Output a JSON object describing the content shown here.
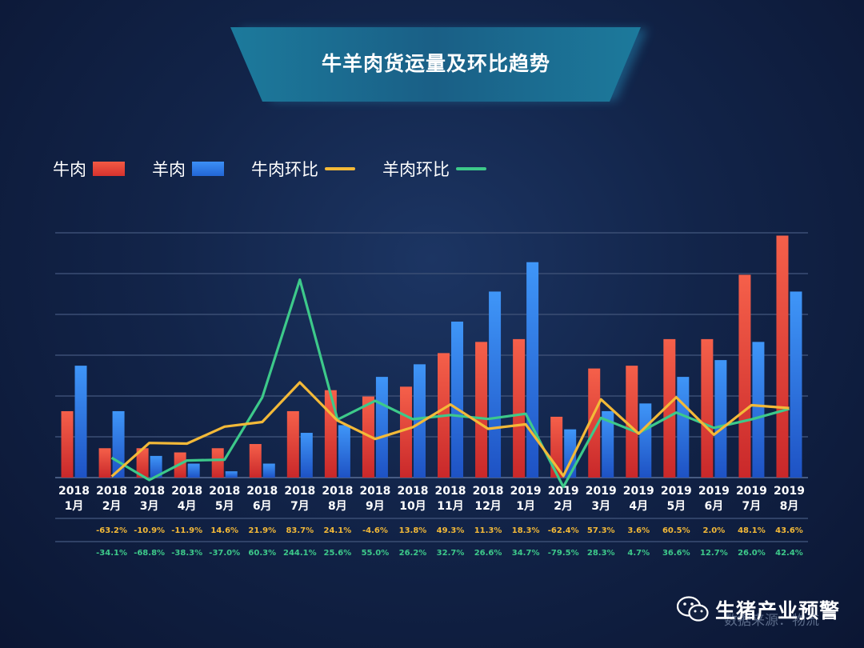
{
  "title": "牛羊肉货运量及环比趋势",
  "legend": {
    "beef": "牛肉",
    "mutton": "羊肉",
    "beef_mom": "牛肉环比",
    "mutton_mom": "羊肉环比"
  },
  "colors": {
    "beef": "#e8453c",
    "mutton": "#2f7ff0",
    "beef_mom": "#f3b938",
    "mutton_mom": "#3dc98a",
    "background": "#122449",
    "banner": "#1a6a8e"
  },
  "watermark": {
    "brand": "生猪产业预警",
    "source": "数据来源：物流"
  },
  "chart_data": {
    "type": "bar",
    "categories": [
      "2018 1月",
      "2018 2月",
      "2018 3月",
      "2018 4月",
      "2018 5月",
      "2018 6月",
      "2018 7月",
      "2018 8月",
      "2018 9月",
      "2018 10月",
      "2018 11月",
      "2018 12月",
      "2019 1月",
      "2019 2月",
      "2019 3月",
      "2019 4月",
      "2019 5月",
      "2019 6月",
      "2019 7月",
      "2019 8月"
    ],
    "category_years": [
      "2018",
      "2018",
      "2018",
      "2018",
      "2018",
      "2018",
      "2018",
      "2018",
      "2018",
      "2018",
      "2018",
      "2018",
      "2019",
      "2019",
      "2019",
      "2019",
      "2019",
      "2019",
      "2019",
      "2019"
    ],
    "category_months": [
      "1月",
      "2月",
      "3月",
      "4月",
      "5月",
      "6月",
      "7月",
      "8月",
      "9月",
      "10月",
      "11月",
      "12月",
      "1月",
      "2月",
      "3月",
      "4月",
      "5月",
      "6月",
      "7月",
      "8月"
    ],
    "series": [
      {
        "name": "牛肉",
        "type": "bar",
        "values": [
          9.5,
          4.2,
          4.2,
          3.6,
          4.2,
          4.8,
          9.5,
          12.5,
          11.6,
          13.0,
          17.8,
          19.4,
          19.8,
          8.7,
          15.6,
          16.0,
          19.8,
          19.8,
          29.0,
          34.6
        ]
      },
      {
        "name": "羊肉",
        "type": "bar",
        "values": [
          16.0,
          9.5,
          3.1,
          2.0,
          0.9,
          2.0,
          6.4,
          7.5,
          14.4,
          16.2,
          22.3,
          26.6,
          30.8,
          6.9,
          9.5,
          10.6,
          14.4,
          16.8,
          19.4,
          26.6
        ]
      },
      {
        "name": "牛肉环比",
        "type": "line",
        "values": [
          null,
          -63.2,
          -10.9,
          -11.9,
          14.6,
          21.9,
          83.7,
          24.1,
          -4.6,
          13.8,
          49.3,
          11.3,
          18.3,
          -62.4,
          57.3,
          3.6,
          60.5,
          2.0,
          48.1,
          43.6
        ]
      },
      {
        "name": "羊肉环比",
        "type": "line",
        "values": [
          null,
          -34.1,
          -68.8,
          -38.3,
          -37.0,
          60.3,
          244.1,
          25.6,
          55.0,
          26.2,
          32.7,
          26.6,
          34.7,
          -79.5,
          28.3,
          4.7,
          36.6,
          12.7,
          26.0,
          42.4
        ]
      }
    ],
    "beef_mom_labels": [
      "",
      "-63.2%",
      "-10.9%",
      "-11.9%",
      "14.6%",
      "21.9%",
      "83.7%",
      "24.1%",
      "-4.6%",
      "13.8%",
      "49.3%",
      "11.3%",
      "18.3%",
      "-62.4%",
      "57.3%",
      "3.6%",
      "60.5%",
      "2.0%",
      "48.1%",
      "43.6%"
    ],
    "mutton_mom_labels": [
      "",
      "-34.1%",
      "-68.8%",
      "-38.3%",
      "-37.0%",
      "60.3%",
      "244.1%",
      "25.6%",
      "55.0%",
      "26.2%",
      "32.7%",
      "26.6%",
      "34.7%",
      "-79.5%",
      "28.3%",
      "4.7%",
      "36.6%",
      "12.7%",
      "26.0%",
      "42.4%"
    ],
    "grid": true,
    "gridlines": 6,
    "legend_position": "top-left"
  }
}
